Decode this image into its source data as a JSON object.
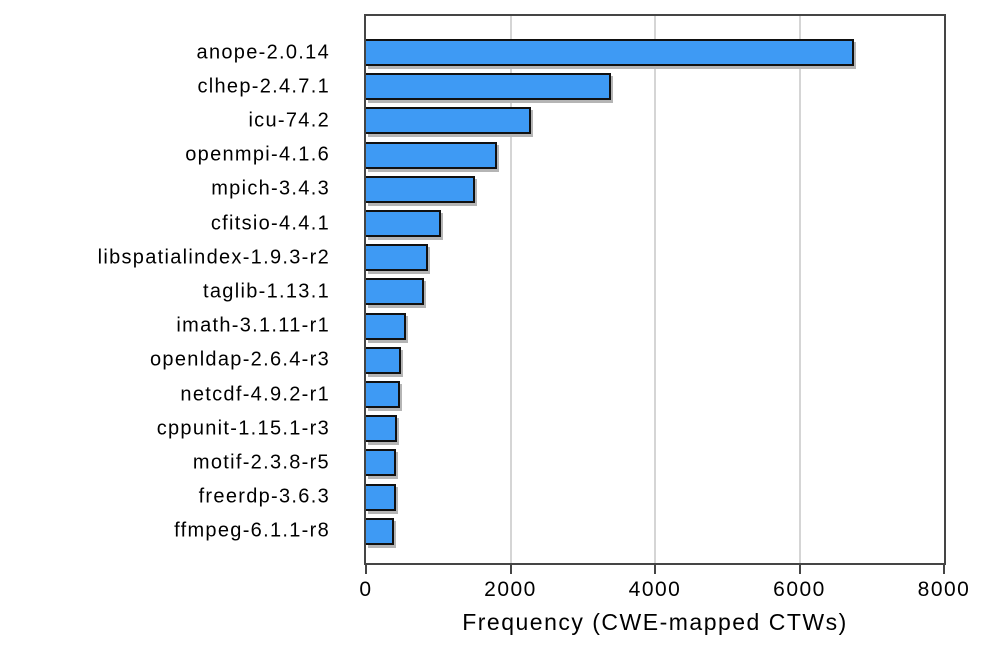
{
  "chart_data": {
    "type": "bar",
    "orientation": "horizontal",
    "title": "",
    "xlabel": "Frequency (CWE-mapped CTWs)",
    "ylabel": "",
    "categories": [
      "anope-2.0.14",
      "clhep-2.4.7.1",
      "icu-74.2",
      "openmpi-4.1.6",
      "mpich-3.4.3",
      "cfitsio-4.4.1",
      "libspatialindex-1.9.3-r2",
      "taglib-1.13.1",
      "imath-3.1.11-r1",
      "openldap-2.6.4-r3",
      "netcdf-4.9.2-r1",
      "cppunit-1.15.1-r3",
      "motif-2.3.8-r5",
      "freerdp-3.6.3",
      "ffmpeg-6.1.1-r8"
    ],
    "values": [
      6760,
      3390,
      2280,
      1820,
      1510,
      1040,
      865,
      805,
      560,
      485,
      465,
      435,
      415,
      410,
      390
    ],
    "xlim": [
      0,
      8000
    ],
    "xticks": [
      0,
      2000,
      4000,
      6000,
      8000
    ],
    "xtick_labels": [
      "0",
      "2000",
      "4000",
      "6000",
      "8000"
    ],
    "grid": "vertical",
    "legend": "none",
    "colors": {
      "bar_fill": "#3e9af4",
      "bar_edge": "#111111",
      "bar_shadow": "#b5b5b5",
      "gridline": "#d5d5d5",
      "frame": "#454545",
      "text": "#000000",
      "background": "#ffffff"
    }
  }
}
